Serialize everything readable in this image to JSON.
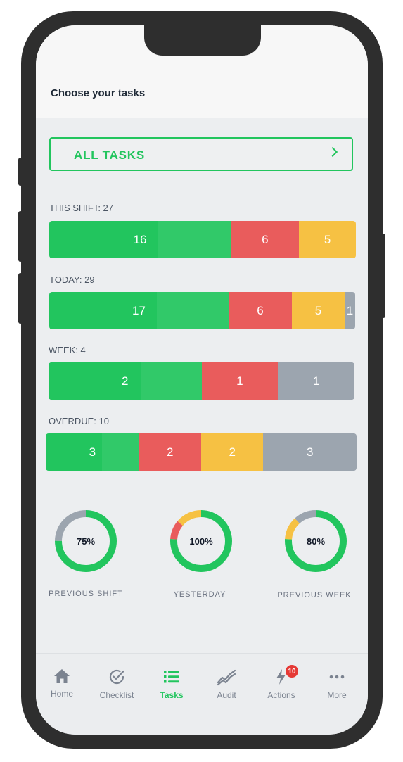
{
  "header": {
    "title": "Choose your tasks"
  },
  "all_tasks": {
    "label": "ALL TASKS"
  },
  "sections": [
    {
      "label": "THIS SHIFT: 27",
      "segments": [
        {
          "status": "green",
          "value": "16",
          "count": 16
        },
        {
          "status": "red",
          "value": "6",
          "count": 6
        },
        {
          "status": "yellow",
          "value": "5",
          "count": 5
        }
      ]
    },
    {
      "label": "TODAY: 29",
      "segments": [
        {
          "status": "green",
          "value": "17",
          "count": 17
        },
        {
          "status": "red",
          "value": "6",
          "count": 6
        },
        {
          "status": "yellow",
          "value": "5",
          "count": 5
        },
        {
          "status": "grey",
          "value": "1",
          "count": 1
        }
      ]
    },
    {
      "label": "WEEK: 4",
      "segments": [
        {
          "status": "green",
          "value": "2",
          "count": 2
        },
        {
          "status": "red",
          "value": "1",
          "count": 1
        },
        {
          "status": "grey",
          "value": "1",
          "count": 1
        }
      ]
    },
    {
      "label": "OVERDUE: 10",
      "segments": [
        {
          "status": "green",
          "value": "3",
          "count": 3
        },
        {
          "status": "red",
          "value": "2",
          "count": 2
        },
        {
          "status": "yellow",
          "value": "2",
          "count": 2
        },
        {
          "status": "grey",
          "value": "3",
          "count": 3
        }
      ]
    }
  ],
  "donuts": [
    {
      "label": "PREVIOUS SHIFT",
      "percent_text": "75%",
      "slices": [
        {
          "color": "#22c55e",
          "fraction": 0.75
        },
        {
          "color": "#9ca5af",
          "fraction": 0.25
        }
      ]
    },
    {
      "label": "YESTERDAY",
      "percent_text": "100%",
      "slices": [
        {
          "color": "#22c55e",
          "fraction": 0.76
        },
        {
          "color": "#e95c5c",
          "fraction": 0.1
        },
        {
          "color": "#f6c143",
          "fraction": 0.14
        }
      ]
    },
    {
      "label": "PREVIOUS WEEK",
      "percent_text": "80%",
      "slices": [
        {
          "color": "#22c55e",
          "fraction": 0.76
        },
        {
          "color": "#f6c143",
          "fraction": 0.12
        },
        {
          "color": "#9ca5af",
          "fraction": 0.12
        }
      ]
    }
  ],
  "tabs": [
    {
      "label": "Home",
      "icon": "home-icon"
    },
    {
      "label": "Checklist",
      "icon": "checklist-icon"
    },
    {
      "label": "Tasks",
      "icon": "tasks-list-icon",
      "active": true
    },
    {
      "label": "Audit",
      "icon": "audit-chart-icon"
    },
    {
      "label": "Actions",
      "icon": "actions-bolt-icon",
      "badge": "10"
    },
    {
      "label": "More",
      "icon": "more-dots-icon"
    }
  ],
  "colors": {
    "green": "#22c55e",
    "red": "#e95c5c",
    "yellow": "#f6c143",
    "grey": "#9ca5af"
  }
}
